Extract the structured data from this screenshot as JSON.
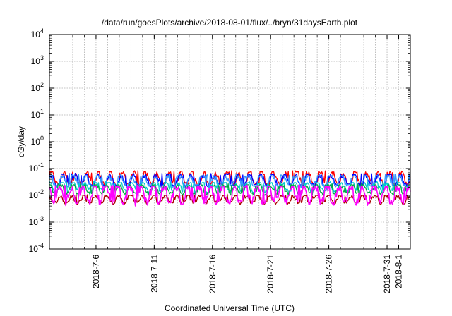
{
  "chart_data": {
    "type": "line",
    "title": "/data/run/goesPlots/archive/2018-08-01/flux/../bryn/31daysEarth.plot",
    "xlabel": "Coordinated Universal Time (UTC)",
    "ylabel": "cGy/day",
    "yscale": "log",
    "ylim": [
      0.0001,
      10000
    ],
    "xlim": [
      "2018-07-02",
      "2018-08-02"
    ],
    "grid": true,
    "legend": "none",
    "x_ticks": [
      "2018-7-6",
      "2018-7-11",
      "2018-7-16",
      "2018-7-21",
      "2018-7-26",
      "2018-7-31",
      "2018-8-1"
    ],
    "y_ticks": [
      {
        "value": 0.0001,
        "base": "10",
        "exp": "-4"
      },
      {
        "value": 0.001,
        "base": "10",
        "exp": "-3"
      },
      {
        "value": 0.01,
        "base": "10",
        "exp": "-2"
      },
      {
        "value": 0.1,
        "base": "10",
        "exp": "-1"
      },
      {
        "value": 1,
        "base": "10",
        "exp": "0"
      },
      {
        "value": 10,
        "base": "10",
        "exp": "1"
      },
      {
        "value": 100,
        "base": "10",
        "exp": "2"
      },
      {
        "value": 1000,
        "base": "10",
        "exp": "3"
      },
      {
        "value": 10000,
        "base": "10",
        "exp": "4"
      }
    ],
    "series": [
      {
        "color": "#ff0000",
        "typical": 0.032,
        "peak": 0.075,
        "low": 0.022
      },
      {
        "color": "#0000ff",
        "typical": 0.028,
        "peak": 0.06,
        "low": 0.02
      },
      {
        "color": "#3399ff",
        "typical": 0.026,
        "peak": 0.055,
        "low": 0.019
      },
      {
        "color": "#00cccc",
        "typical": 0.017,
        "peak": 0.03,
        "low": 0.012
      },
      {
        "color": "#00aa44",
        "typical": 0.014,
        "peak": 0.025,
        "low": 0.01
      },
      {
        "color": "#aa0000",
        "typical": 0.006,
        "peak": 0.01,
        "low": 0.0045
      },
      {
        "color": "#ff00ff",
        "typical": 0.008,
        "peak": 0.022,
        "low": 0.004
      }
    ]
  }
}
